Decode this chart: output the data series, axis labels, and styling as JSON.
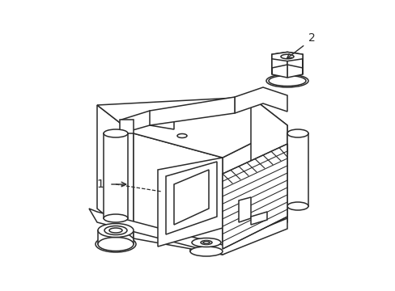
{
  "background_color": "#ffffff",
  "line_color": "#2a2a2a",
  "line_width": 1.1,
  "label1_text": "1",
  "label2_text": "2",
  "fig_width": 4.89,
  "fig_height": 3.6,
  "dpi": 100
}
